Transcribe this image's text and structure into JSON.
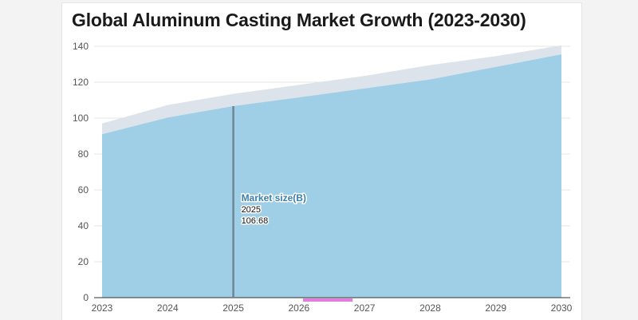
{
  "title": "Global Aluminum Casting Market Growth (2023-2030)",
  "colors": {
    "area": "#9fcfe6",
    "upper_band": "#dde3ea",
    "hover_line": "#6e8694",
    "scrollbar": "#e17fe1",
    "grid": "#e6e6e6",
    "axis": "#333333"
  },
  "chart_data": {
    "type": "area",
    "title": "Global Aluminum Casting Market Growth (2023-2030)",
    "x": [
      2023,
      2024,
      2025,
      2026,
      2027,
      2028,
      2029,
      2030
    ],
    "ylim": [
      0,
      140
    ],
    "yticks": [
      0,
      20,
      40,
      60,
      80,
      100,
      120,
      140
    ],
    "grid": true,
    "series": [
      {
        "name": "Market size(B)",
        "values": [
          91,
          100.3,
          106.68,
          111.5,
          116.5,
          121.5,
          128.5,
          135.5
        ]
      },
      {
        "name": "",
        "values": [
          97,
          107.3,
          113.5,
          118.5,
          123.5,
          129.5,
          134.5,
          140.5
        ]
      }
    ]
  },
  "tooltip": {
    "series_name": "Market size(B)",
    "x_value": "2025",
    "y_value": "106.68"
  }
}
